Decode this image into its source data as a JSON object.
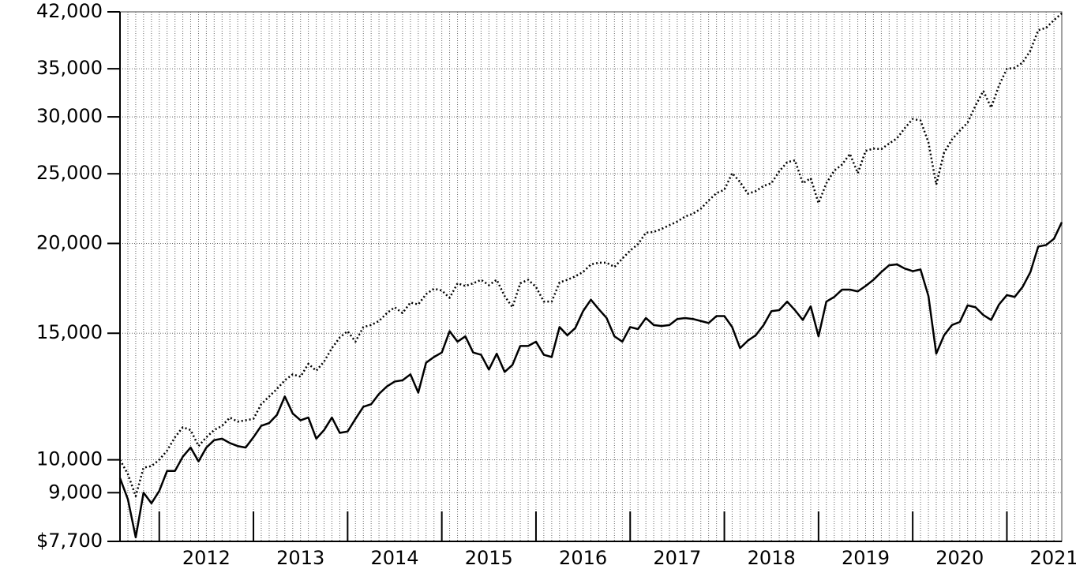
{
  "chart_data": {
    "type": "line",
    "log_y": true,
    "grid": true,
    "x": [
      2011.583,
      2011.667,
      2011.75,
      2011.833,
      2011.917,
      2012,
      2012.083,
      2012.167,
      2012.25,
      2012.333,
      2012.417,
      2012.5,
      2012.583,
      2012.667,
      2012.75,
      2012.833,
      2012.917,
      2013,
      2013.083,
      2013.167,
      2013.25,
      2013.333,
      2013.417,
      2013.5,
      2013.583,
      2013.667,
      2013.75,
      2013.833,
      2013.917,
      2014,
      2014.083,
      2014.167,
      2014.25,
      2014.333,
      2014.417,
      2014.5,
      2014.583,
      2014.667,
      2014.75,
      2014.833,
      2014.917,
      2015,
      2015.083,
      2015.167,
      2015.25,
      2015.333,
      2015.417,
      2015.5,
      2015.583,
      2015.667,
      2015.75,
      2015.833,
      2015.917,
      2016,
      2016.083,
      2016.167,
      2016.25,
      2016.333,
      2016.417,
      2016.5,
      2016.583,
      2016.667,
      2016.75,
      2016.833,
      2016.917,
      2017,
      2017.083,
      2017.167,
      2017.25,
      2017.333,
      2017.417,
      2017.5,
      2017.583,
      2017.667,
      2017.75,
      2017.833,
      2017.917,
      2018,
      2018.083,
      2018.167,
      2018.25,
      2018.333,
      2018.417,
      2018.5,
      2018.583,
      2018.667,
      2018.75,
      2018.833,
      2018.917,
      2019,
      2019.083,
      2019.167,
      2019.25,
      2019.333,
      2019.417,
      2019.5,
      2019.583,
      2019.667,
      2019.75,
      2019.833,
      2019.917,
      2020,
      2020.083,
      2020.167,
      2020.25,
      2020.333,
      2020.417,
      2020.5,
      2020.583,
      2020.667,
      2020.75,
      2020.833,
      2020.917,
      2021,
      2021.083,
      2021.167,
      2021.25,
      2021.333,
      2021.417,
      2021.5,
      2021.583
    ],
    "series": [
      {
        "color": "#000000",
        "line_style": "solid",
        "values": [
          9430,
          8810,
          7800,
          9000,
          8700,
          9050,
          9650,
          9650,
          10100,
          10400,
          9950,
          10400,
          10650,
          10700,
          10550,
          10450,
          10400,
          10750,
          11150,
          11250,
          11550,
          12250,
          11600,
          11350,
          11450,
          10700,
          11000,
          11450,
          10900,
          10950,
          11400,
          11850,
          11950,
          12350,
          12650,
          12850,
          12900,
          13150,
          12400,
          13650,
          13900,
          14100,
          15100,
          14600,
          14850,
          14100,
          14000,
          13350,
          14050,
          13250,
          13550,
          14400,
          14400,
          14600,
          14000,
          13900,
          15300,
          14900,
          15250,
          16100,
          16700,
          16200,
          15750,
          14850,
          14600,
          15300,
          15200,
          15750,
          15400,
          15350,
          15400,
          15700,
          15750,
          15700,
          15600,
          15500,
          15850,
          15850,
          15300,
          14300,
          14650,
          14900,
          15400,
          16100,
          16150,
          16600,
          16150,
          15650,
          16350,
          14850,
          16600,
          16850,
          17250,
          17250,
          17150,
          17450,
          17800,
          18250,
          18650,
          18700,
          18450,
          18300,
          18400,
          16900,
          14050,
          14900,
          15400,
          15550,
          16400,
          16300,
          15900,
          15650,
          16450,
          16950,
          16850,
          17400,
          18250,
          19800,
          19900,
          20300,
          21400
        ]
      },
      {
        "color": "#000000",
        "line_style": "dotted",
        "values": [
          10000,
          9550,
          8900,
          9750,
          9800,
          10000,
          10300,
          10750,
          11100,
          11000,
          10450,
          10750,
          11000,
          11150,
          11450,
          11300,
          11350,
          11400,
          11950,
          12250,
          12550,
          12900,
          13150,
          13050,
          13600,
          13300,
          13700,
          14300,
          14800,
          15100,
          14600,
          15300,
          15400,
          15600,
          16000,
          16300,
          16000,
          16550,
          16450,
          17000,
          17300,
          17200,
          16800,
          17600,
          17450,
          17600,
          17800,
          17500,
          17800,
          16900,
          16300,
          17600,
          17800,
          17400,
          16600,
          16600,
          17650,
          17800,
          18000,
          18250,
          18700,
          18800,
          18800,
          18550,
          19050,
          19550,
          19950,
          20700,
          20750,
          20950,
          21200,
          21450,
          21800,
          22000,
          22350,
          22950,
          23500,
          23750,
          25050,
          24350,
          23450,
          23650,
          24050,
          24250,
          25200,
          25950,
          26100,
          24250,
          24650,
          22750,
          24250,
          25250,
          25750,
          26650,
          25050,
          26900,
          27100,
          27050,
          27550,
          28000,
          28950,
          29800,
          29650,
          27650,
          24150,
          26750,
          27900,
          28700,
          29450,
          31100,
          32600,
          30900,
          33200,
          35000,
          35100,
          35700,
          37100,
          39600,
          39900,
          40900,
          41800
        ]
      }
    ],
    "xlim": [
      2011.583,
      2021.583
    ],
    "ylim": [
      7700,
      42000
    ],
    "xticks": [
      {
        "value": 2012,
        "label": "2012"
      },
      {
        "value": 2013,
        "label": "2013"
      },
      {
        "value": 2014,
        "label": "2014"
      },
      {
        "value": 2015,
        "label": "2015"
      },
      {
        "value": 2016,
        "label": "2016"
      },
      {
        "value": 2017,
        "label": "2017"
      },
      {
        "value": 2018,
        "label": "2018"
      },
      {
        "value": 2019,
        "label": "2019"
      },
      {
        "value": 2020,
        "label": "2020"
      },
      {
        "value": 2021,
        "label": "2021"
      }
    ],
    "yticks": [
      {
        "value": 7700,
        "label": "$7,700"
      },
      {
        "value": 9000,
        "label": "9,000"
      },
      {
        "value": 10000,
        "label": "10,000"
      },
      {
        "value": 15000,
        "label": "15,000"
      },
      {
        "value": 20000,
        "label": "20,000"
      },
      {
        "value": 25000,
        "label": "25,000"
      },
      {
        "value": 30000,
        "label": "30,000"
      },
      {
        "value": 35000,
        "label": "35,000"
      },
      {
        "value": 42000,
        "label": "42,000"
      }
    ]
  }
}
